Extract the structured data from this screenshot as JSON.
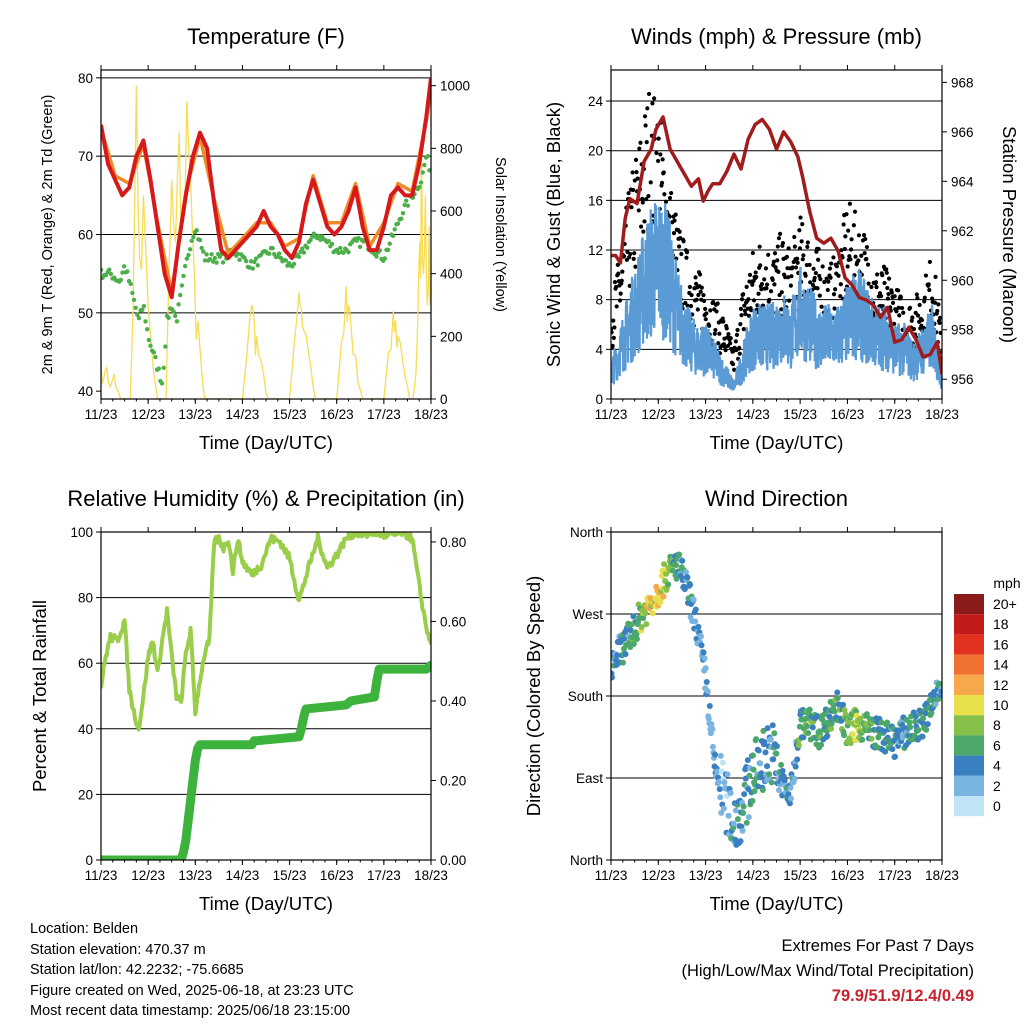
{
  "time_axis_ticks": [
    "11/23",
    "12/23",
    "13/23",
    "14/23",
    "15/23",
    "16/23",
    "17/23",
    "18/23"
  ],
  "time_axis_label": "Time (Day/UTC)",
  "colors": {
    "temp_2m": "#d7191c",
    "temp_9m": "#f08c28",
    "dewpoint": "#4daf4a",
    "solar": "#f7dc55",
    "wind": "#5b9bd5",
    "gust": "#000000",
    "pressure": "#a01c1c",
    "rh": "#9acd4a",
    "precip": "#3db33d"
  },
  "info": {
    "location": "Location: Belden",
    "elevation": "Station elevation: 470.37 m",
    "latlon": "Station lat/lon: 42.2232; -75.6685",
    "created": "Figure created on Wed, 2025-06-18, at 23:23 UTC",
    "recent": "Most recent data timestamp: 2025/06/18 23:15:00"
  },
  "extremes": {
    "title": "Extremes For Past 7 Days",
    "subtitle": "(High/Low/Max Wind/Total Precipitation)",
    "values": "79.9/51.9/12.4/0.49"
  },
  "chart_data": [
    {
      "type": "line",
      "title": "Temperature (F)",
      "xlabel": "Time (Day/UTC)",
      "ylabel": "2m & 9m T (Red, Orange) & 2m Td (Green)",
      "y2label": "Solar Insolation (Yellow)",
      "ylim": [
        39,
        81
      ],
      "y2lim": [
        0,
        1050
      ],
      "yticks": [
        40,
        50,
        60,
        70,
        80
      ],
      "y2ticks": [
        0,
        200,
        400,
        600,
        800,
        1000
      ],
      "grid": true,
      "series": [
        {
          "id": "t2m",
          "axis": "left",
          "x": [
            0,
            0.15,
            0.3,
            0.45,
            0.6,
            0.75,
            0.9,
            1.05,
            1.2,
            1.35,
            1.5,
            1.65,
            1.8,
            1.95,
            2.1,
            2.25,
            2.4,
            2.55,
            2.7,
            2.85,
            3.0,
            3.15,
            3.3,
            3.45,
            3.6,
            3.75,
            3.9,
            4.05,
            4.2,
            4.35,
            4.5,
            4.65,
            4.8,
            4.95,
            5.1,
            5.25,
            5.4,
            5.55,
            5.7,
            5.85,
            6.0,
            6.15,
            6.3,
            6.45,
            6.6,
            6.75,
            6.9,
            7.0
          ],
          "y": [
            74,
            69,
            67,
            65,
            66,
            70,
            72,
            67,
            61,
            55,
            52,
            59,
            65,
            70,
            73,
            71,
            64,
            58,
            57,
            58,
            59,
            60,
            61,
            63,
            61,
            60,
            58,
            57,
            59,
            64,
            67,
            64,
            61,
            60,
            61,
            63,
            66,
            61,
            58,
            58,
            61,
            65,
            66,
            65,
            65,
            69,
            75,
            80
          ]
        },
        {
          "id": "t9m",
          "axis": "left",
          "x": [
            0,
            0.3,
            0.6,
            0.9,
            1.2,
            1.5,
            1.8,
            2.1,
            2.4,
            2.7,
            3.0,
            3.3,
            3.6,
            3.9,
            4.2,
            4.5,
            4.8,
            5.1,
            5.4,
            5.7,
            6.0,
            6.3,
            6.6,
            6.9,
            7.0
          ],
          "y": [
            73.5,
            67.5,
            66.5,
            71.5,
            61.5,
            52.5,
            65.5,
            72.5,
            64.5,
            57.5,
            59.5,
            61.5,
            61.5,
            58.5,
            59.5,
            67.5,
            61.5,
            61.5,
            66.5,
            58.5,
            61.5,
            66.5,
            65.5,
            74.5,
            78.5
          ]
        },
        {
          "id": "td",
          "axis": "left",
          "x": [
            0,
            0.2,
            0.4,
            0.5,
            0.6,
            0.8,
            0.9,
            1.0,
            1.2,
            1.3,
            1.4,
            1.5,
            1.6,
            1.8,
            1.9,
            2.0,
            2.2,
            2.4,
            2.6,
            2.8,
            3.0,
            3.2,
            3.4,
            3.6,
            3.8,
            4.0,
            4.2,
            4.4,
            4.6,
            4.8,
            5.0,
            5.2,
            5.4,
            5.6,
            5.8,
            6.0,
            6.2,
            6.4,
            6.6,
            6.8,
            6.9,
            7.0
          ],
          "y": [
            55,
            55,
            54,
            56,
            54,
            49,
            51,
            47,
            43,
            41,
            49,
            51,
            49,
            56,
            59,
            61,
            57,
            57,
            57,
            58,
            57,
            56,
            57,
            58,
            57,
            56,
            57,
            59,
            60,
            59,
            58,
            58,
            59,
            59,
            58,
            57,
            60,
            63,
            65,
            67,
            70,
            68
          ]
        },
        {
          "id": "solar",
          "axis": "right",
          "x": [
            0,
            0.05,
            0.12,
            0.2,
            0.28,
            0.35,
            0.42,
            0.5,
            0.56,
            0.62,
            0.68,
            0.75,
            0.82,
            0.9,
            1.0,
            1.08,
            1.15,
            1.2,
            1.26,
            1.32,
            1.38,
            1.44,
            1.5,
            1.58,
            1.66,
            1.74,
            1.82,
            1.9,
            1.98,
            2.06,
            2.14,
            2.2,
            2.26,
            2.32,
            2.38,
            2.45,
            2.5,
            3.0,
            3.1,
            3.2,
            3.25,
            3.3,
            3.4,
            3.5,
            3.55,
            4.0,
            4.1,
            4.2,
            4.25,
            4.3,
            4.4,
            4.5,
            4.55,
            5.0,
            5.1,
            5.2,
            5.25,
            5.3,
            5.4,
            5.5,
            5.55,
            6.0,
            6.1,
            6.2,
            6.25,
            6.3,
            6.4,
            6.5,
            6.55,
            6.62,
            6.68,
            6.72,
            6.76,
            6.8,
            6.84,
            6.88,
            6.92,
            6.96,
            7.0
          ],
          "y": [
            120,
            60,
            100,
            40,
            80,
            30,
            0,
            0,
            0,
            0,
            280,
            1000,
            450,
            650,
            300,
            150,
            50,
            0,
            0,
            0,
            0,
            400,
            700,
            500,
            850,
            600,
            950,
            700,
            400,
            250,
            80,
            0,
            0,
            0,
            0,
            0,
            0,
            0,
            150,
            300,
            250,
            200,
            120,
            20,
            0,
            0,
            180,
            340,
            290,
            220,
            150,
            40,
            0,
            0,
            180,
            360,
            300,
            240,
            140,
            30,
            0,
            0,
            150,
            280,
            250,
            200,
            120,
            40,
            0,
            0,
            80,
            250,
            500,
            820,
            400,
            650,
            300,
            550,
            350
          ]
        },
        {
          "id": "dewpoint_dots",
          "axis": "left",
          "x": [],
          "y": []
        }
      ]
    },
    {
      "type": "line",
      "title": "Winds (mph) & Pressure (mb)",
      "xlabel": "Time (Day/UTC)",
      "ylabel": "Sonic Wind & Gust (Blue, Black)",
      "y2label": "Station Pressure (Maroon)",
      "ylim": [
        0,
        26.5
      ],
      "y2lim": [
        955.2,
        968.5
      ],
      "yticks": [
        0,
        4,
        8,
        12,
        16,
        20,
        24
      ],
      "y2ticks": [
        956,
        958,
        960,
        962,
        964,
        966,
        968
      ],
      "grid": true,
      "series": [
        {
          "id": "pressure",
          "axis": "right",
          "x": [
            0,
            0.1,
            0.2,
            0.3,
            0.4,
            0.55,
            0.7,
            0.85,
            0.95,
            1.1,
            1.25,
            1.4,
            1.55,
            1.7,
            1.85,
            1.95,
            2.05,
            2.15,
            2.3,
            2.45,
            2.6,
            2.75,
            2.9,
            3.05,
            3.2,
            3.35,
            3.5,
            3.65,
            3.8,
            3.95,
            4.05,
            4.2,
            4.35,
            4.5,
            4.65,
            4.8,
            4.95,
            5.1,
            5.25,
            5.4,
            5.55,
            5.7,
            5.85,
            6.0,
            6.15,
            6.3,
            6.45,
            6.6,
            6.75,
            6.9,
            7.0
          ],
          "y": [
            961,
            961,
            960.7,
            962.5,
            963.3,
            963.1,
            964.8,
            965.3,
            966.1,
            966.6,
            965.3,
            964.8,
            964.3,
            963.8,
            964.1,
            963.2,
            963.6,
            963.9,
            963.9,
            964.4,
            965.1,
            964.5,
            965.7,
            966.3,
            966.5,
            966.1,
            965.3,
            966.0,
            965.6,
            965.0,
            964.2,
            962.8,
            961.7,
            961.5,
            961.7,
            961.2,
            960.1,
            959.8,
            959.3,
            959.2,
            959.0,
            958.5,
            958.9,
            957.5,
            957.6,
            958.1,
            957.6,
            956.9,
            957.0,
            957.5,
            956.2
          ]
        },
        {
          "id": "wind",
          "axis": "left",
          "x": [
            0,
            0.2,
            0.4,
            0.6,
            0.8,
            1.0,
            1.2,
            1.4,
            1.6,
            1.8,
            2.0,
            2.2,
            2.4,
            2.6,
            2.8,
            3.0,
            3.2,
            3.4,
            3.6,
            3.8,
            4.0,
            4.2,
            4.4,
            4.6,
            4.8,
            5.0,
            5.2,
            5.4,
            5.6,
            5.8,
            6.0,
            6.2,
            6.4,
            6.6,
            6.8,
            7.0
          ],
          "y": [
            2,
            4,
            6,
            8,
            10,
            11,
            10,
            7,
            5,
            4,
            4,
            3,
            2,
            1,
            3,
            5,
            5,
            5,
            6,
            5,
            7,
            6,
            5,
            5,
            5,
            6,
            7,
            6,
            5,
            5,
            4,
            4,
            3,
            4,
            5,
            1.5
          ]
        },
        {
          "id": "gust",
          "axis": "left",
          "x": [
            0,
            0.2,
            0.4,
            0.6,
            0.8,
            1.0,
            1.2,
            1.4,
            1.6,
            1.8,
            2.0,
            2.2,
            2.4,
            2.6,
            2.8,
            3.0,
            3.2,
            3.4,
            3.6,
            3.8,
            4.0,
            4.2,
            4.4,
            4.6,
            4.8,
            5.0,
            5.2,
            5.4,
            5.6,
            5.8,
            6.0,
            6.2,
            6.4,
            6.6,
            6.8,
            7.0
          ],
          "y": [
            6,
            9,
            13,
            16,
            19,
            18,
            14,
            11,
            9,
            8,
            7,
            6,
            5,
            3,
            7,
            9,
            10,
            9,
            10,
            9,
            11,
            10,
            9,
            8,
            9,
            12,
            11,
            10,
            8,
            8,
            7,
            6,
            6,
            7,
            9,
            4
          ]
        }
      ]
    },
    {
      "type": "line",
      "title": "Relative Humidity (%) & Precipitation (in)",
      "xlabel": "Time (Day/UTC)",
      "ylabel": "Percent & Total Rainfall",
      "ylim": [
        0,
        100
      ],
      "y2lim": [
        0,
        0.825
      ],
      "yticks": [
        0,
        20,
        40,
        60,
        80,
        100
      ],
      "y2ticks": [
        0.0,
        0.2,
        0.4,
        0.6,
        0.8
      ],
      "y2ticklabels": [
        "0.00",
        "0.20",
        "0.40",
        "0.60",
        "0.80"
      ],
      "grid": true,
      "series": [
        {
          "id": "rh",
          "axis": "left",
          "x": [
            0,
            0.1,
            0.2,
            0.35,
            0.5,
            0.6,
            0.7,
            0.8,
            0.9,
            1.0,
            1.1,
            1.2,
            1.3,
            1.4,
            1.5,
            1.6,
            1.7,
            1.8,
            1.9,
            2.0,
            2.1,
            2.2,
            2.3,
            2.4,
            2.5,
            2.6,
            2.7,
            2.8,
            2.9,
            3.0,
            3.2,
            3.4,
            3.6,
            3.8,
            4.0,
            4.2,
            4.4,
            4.6,
            4.8,
            5.0,
            5.2,
            5.4,
            5.6,
            5.8,
            6.0,
            6.2,
            6.4,
            6.6,
            6.8,
            6.9,
            7.0
          ],
          "y": [
            53,
            62,
            68,
            67,
            73,
            52,
            45,
            40,
            50,
            62,
            67,
            57,
            67,
            76,
            62,
            50,
            48,
            63,
            70,
            45,
            55,
            63,
            67,
            97,
            98,
            95,
            98,
            88,
            98,
            91,
            87,
            90,
            98,
            97,
            92,
            79,
            89,
            98,
            89,
            93,
            98,
            100,
            99,
            100,
            99,
            99,
            100,
            98,
            79,
            71,
            66
          ]
        },
        {
          "id": "precip",
          "axis": "right",
          "x": [
            0,
            1.7,
            1.75,
            1.8,
            1.85,
            1.9,
            1.95,
            2.0,
            2.05,
            2.1,
            2.15,
            3.2,
            3.25,
            3.3,
            4.2,
            4.25,
            4.3,
            4.35,
            5.2,
            5.3,
            5.8,
            5.85,
            5.9,
            6.9,
            7.0
          ],
          "y": [
            0,
            0,
            0.02,
            0.05,
            0.1,
            0.15,
            0.2,
            0.25,
            0.28,
            0.29,
            0.29,
            0.29,
            0.3,
            0.3,
            0.31,
            0.33,
            0.36,
            0.38,
            0.39,
            0.4,
            0.41,
            0.45,
            0.48,
            0.48,
            0.49
          ]
        }
      ]
    },
    {
      "type": "scatter",
      "title": "Wind Direction",
      "xlabel": "Time (Day/UTC)",
      "ylabel": "Direction (Colored By Speed)",
      "ylim": [
        0,
        360
      ],
      "yticklabels": [
        "North",
        "East",
        "South",
        "West",
        "North"
      ],
      "grid": true,
      "legend": {
        "title": "mph",
        "placement": "right",
        "labels": [
          "20+",
          "18",
          "16",
          "14",
          "12",
          "10",
          "8",
          "6",
          "4",
          "2",
          "0"
        ],
        "colors": [
          "#8b1a1a",
          "#c11b1b",
          "#e0321e",
          "#f07030",
          "#f7a84a",
          "#e8e04a",
          "#86c04a",
          "#4ca86a",
          "#3a7fc0",
          "#7ab4e0",
          "#bfe4f6"
        ]
      },
      "series": [
        {
          "id": "direction",
          "x": [
            0,
            0.2,
            0.4,
            0.6,
            0.8,
            1.0,
            1.2,
            1.4,
            1.6,
            1.8,
            2.0,
            2.2,
            2.4,
            2.6,
            2.8,
            3.0,
            3.2,
            3.4,
            3.6,
            3.8,
            4.0,
            4.2,
            4.4,
            4.6,
            4.8,
            5.0,
            5.2,
            5.4,
            5.6,
            5.8,
            6.0,
            6.2,
            6.4,
            6.6,
            6.8,
            7.0
          ],
          "y": [
            215,
            230,
            245,
            265,
            280,
            295,
            315,
            325,
            300,
            260,
            200,
            100,
            70,
            40,
            60,
            95,
            110,
            120,
            85,
            70,
            150,
            150,
            140,
            155,
            170,
            140,
            150,
            145,
            140,
            135,
            130,
            140,
            145,
            150,
            170,
            200
          ],
          "speed": [
            3,
            4,
            5,
            7,
            10,
            11,
            8,
            5,
            4,
            3,
            3,
            3,
            2,
            4,
            4,
            5,
            4,
            4,
            4,
            3,
            6,
            6,
            6,
            5,
            6,
            7,
            8,
            7,
            5,
            5,
            4,
            4,
            5,
            5,
            5,
            3
          ]
        }
      ]
    }
  ]
}
